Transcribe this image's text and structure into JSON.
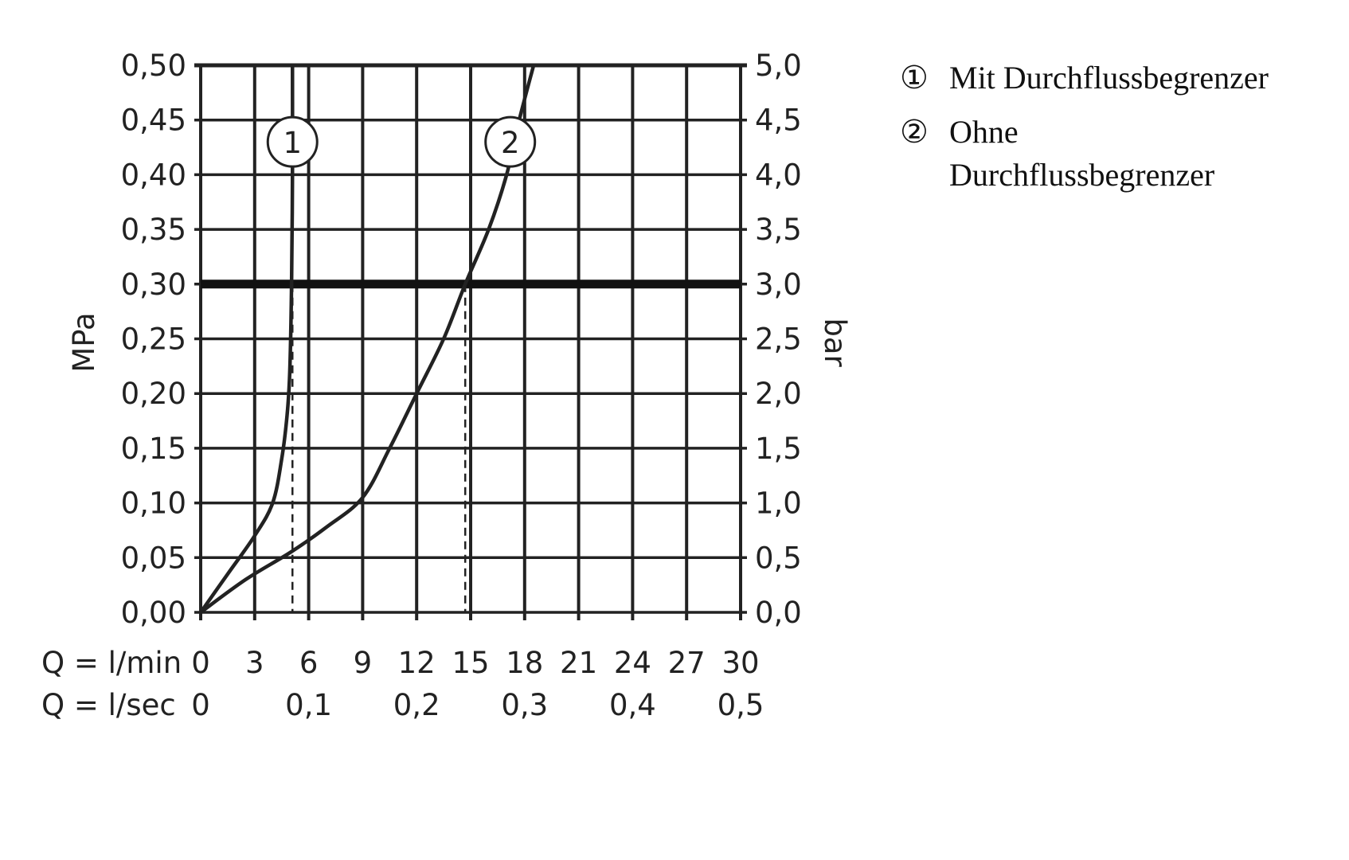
{
  "chart_data": {
    "type": "line",
    "xlabel_rows": [
      {
        "label": "Q = l/min",
        "ticks": [
          {
            "x": 0,
            "text": "0"
          },
          {
            "x": 3,
            "text": "3"
          },
          {
            "x": 6,
            "text": "6"
          },
          {
            "x": 9,
            "text": "9"
          },
          {
            "x": 12,
            "text": "12"
          },
          {
            "x": 15,
            "text": "15"
          },
          {
            "x": 18,
            "text": "18"
          },
          {
            "x": 21,
            "text": "21"
          },
          {
            "x": 24,
            "text": "24"
          },
          {
            "x": 27,
            "text": "27"
          },
          {
            "x": 30,
            "text": "30"
          }
        ]
      },
      {
        "label": "Q = l/sec",
        "ticks": [
          {
            "x": 0,
            "text": "0"
          },
          {
            "x": 6,
            "text": "0,1"
          },
          {
            "x": 12,
            "text": "0,2"
          },
          {
            "x": 18,
            "text": "0,3"
          },
          {
            "x": 24,
            "text": "0,4"
          },
          {
            "x": 30,
            "text": "0,5"
          }
        ]
      }
    ],
    "ylabel_left": "MPa",
    "ylabel_right": "bar",
    "xlim": [
      0,
      30
    ],
    "ylim": [
      0,
      0.5
    ],
    "x_grid_step": 3,
    "grid": true,
    "yticks_left": [
      "0,00",
      "0,05",
      "0,10",
      "0,15",
      "0,20",
      "0,25",
      "0,30",
      "0,35",
      "0,40",
      "0,45",
      "0,50"
    ],
    "yticks_right": [
      "0,0",
      "0,5",
      "1,0",
      "1,5",
      "2,0",
      "2,5",
      "3,0",
      "3,5",
      "4,0",
      "4,5",
      "5,0"
    ],
    "reference_line_y": 0.3,
    "series": [
      {
        "marker": "1",
        "name": "Mit Durchflussbegrenzer",
        "marker_at": [
          5.1,
          0.43
        ],
        "x": [
          0,
          1.5,
          3,
          4,
          4.5,
          4.8,
          4.95,
          5.05,
          5.1,
          5.1
        ],
        "y": [
          0,
          0.035,
          0.07,
          0.1,
          0.14,
          0.18,
          0.22,
          0.3,
          0.4,
          0.5
        ],
        "drop_x": 5.1
      },
      {
        "marker": "2",
        "name": "Ohne Durchflussbegrenzer",
        "marker_at": [
          17.2,
          0.43
        ],
        "x": [
          0,
          2.5,
          5,
          7,
          9,
          10.5,
          12,
          13.5,
          14.7,
          16,
          17,
          17.7,
          18.5
        ],
        "y": [
          0,
          0.03,
          0.055,
          0.078,
          0.105,
          0.15,
          0.2,
          0.25,
          0.3,
          0.35,
          0.4,
          0.45,
          0.5
        ],
        "drop_x": 14.7
      }
    ]
  },
  "legend": [
    {
      "symbol": "①",
      "lines": [
        "Mit Durchflussbegrenzer"
      ]
    },
    {
      "symbol": "②",
      "lines": [
        "Ohne",
        "Durchflussbegrenzer"
      ]
    }
  ]
}
